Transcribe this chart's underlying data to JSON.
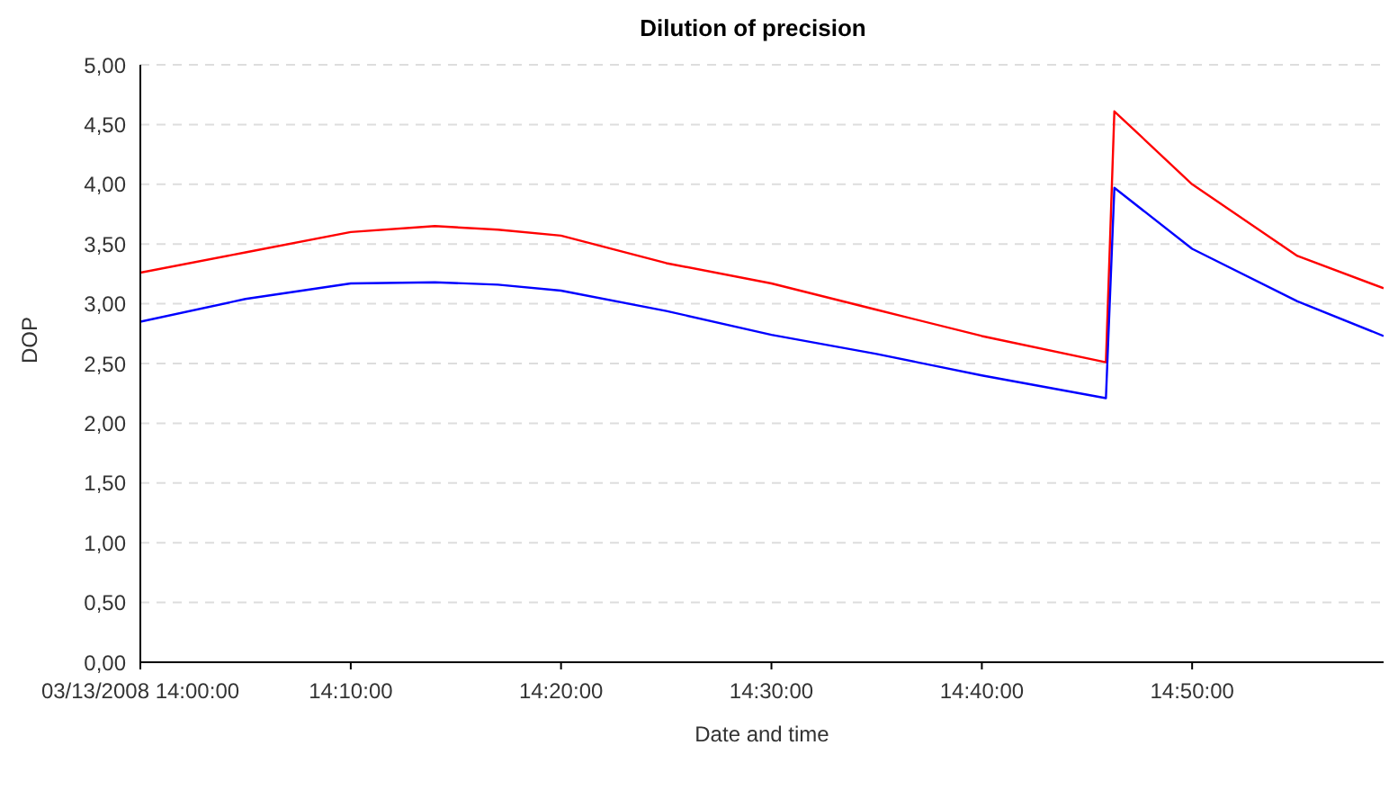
{
  "chart_data": {
    "type": "line",
    "title": "Dilution of precision",
    "xlabel": "Date and time",
    "ylabel": "DOP",
    "x": [
      14,
      14.0833,
      14.1667,
      14.2333,
      14.2833,
      14.3333,
      14.4167,
      14.5,
      14.5833,
      14.6667,
      14.765,
      14.7717,
      14.8333,
      14.9167,
      14.985
    ],
    "series": [
      {
        "color": "#ff0000",
        "values": [
          3.26,
          3.43,
          3.6,
          3.65,
          3.62,
          3.57,
          3.34,
          3.17,
          2.95,
          2.73,
          2.51,
          4.61,
          4.0,
          3.4,
          3.13
        ]
      },
      {
        "color": "#0000ff",
        "values": [
          2.85,
          3.04,
          3.17,
          3.18,
          3.16,
          3.11,
          2.94,
          2.74,
          2.58,
          2.4,
          2.21,
          3.97,
          3.46,
          3.02,
          2.73
        ]
      }
    ],
    "xlim": [
      14,
      14.985
    ],
    "xticks": [
      {
        "value": 14,
        "label": "03/13/2008 14:00:00"
      },
      {
        "value": 14.1667,
        "label": "14:10:00"
      },
      {
        "value": 14.3333,
        "label": "14:20:00"
      },
      {
        "value": 14.5,
        "label": "14:30:00"
      },
      {
        "value": 14.6667,
        "label": "14:40:00"
      },
      {
        "value": 14.8333,
        "label": "14:50:00"
      }
    ],
    "ylim": [
      0,
      5
    ],
    "yticks": [
      {
        "value": 0,
        "label": "0,00"
      },
      {
        "value": 0.5,
        "label": "0,50"
      },
      {
        "value": 1,
        "label": "1,00"
      },
      {
        "value": 1.5,
        "label": "1,50"
      },
      {
        "value": 2,
        "label": "2,00"
      },
      {
        "value": 2.5,
        "label": "2,50"
      },
      {
        "value": 3,
        "label": "3,00"
      },
      {
        "value": 3.5,
        "label": "3,50"
      },
      {
        "value": 4,
        "label": "4,00"
      },
      {
        "value": 4.5,
        "label": "4,50"
      },
      {
        "value": 5,
        "label": "5,00"
      }
    ],
    "grid": "y",
    "marker": "none",
    "line_style": "solid",
    "legend": false
  }
}
